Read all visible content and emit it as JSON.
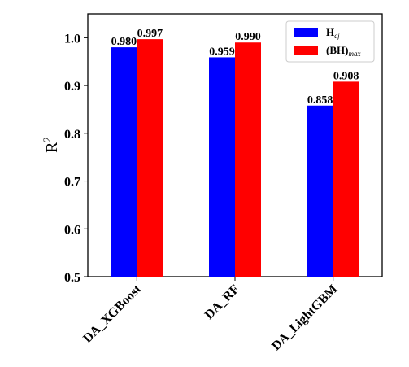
{
  "chart_data": {
    "type": "bar",
    "categories": [
      "DA_XGBoost",
      "DA_RF",
      "DA_LightGBM"
    ],
    "series": [
      {
        "name": "H",
        "name_sub": "cj",
        "color": "#0000ff",
        "values": [
          0.98,
          0.959,
          0.858
        ],
        "labels": [
          "0.980",
          "0.959",
          "0.858"
        ]
      },
      {
        "name": "(BH)",
        "name_sub": "max",
        "color": "#ff0000",
        "values": [
          0.997,
          0.99,
          0.908
        ],
        "labels": [
          "0.997",
          "0.990",
          "0.908"
        ]
      }
    ],
    "title": "",
    "xlabel": "",
    "ylabel": "R",
    "ylabel_sup": "2",
    "ylim": [
      0.5,
      1.05
    ],
    "yticks": [
      0.5,
      0.6,
      0.7,
      0.8,
      0.9,
      1.0
    ],
    "ytick_labels": [
      "0.5",
      "0.6",
      "0.7",
      "0.8",
      "0.9",
      "1.0"
    ],
    "grid": false,
    "legend_position": "top-right"
  }
}
